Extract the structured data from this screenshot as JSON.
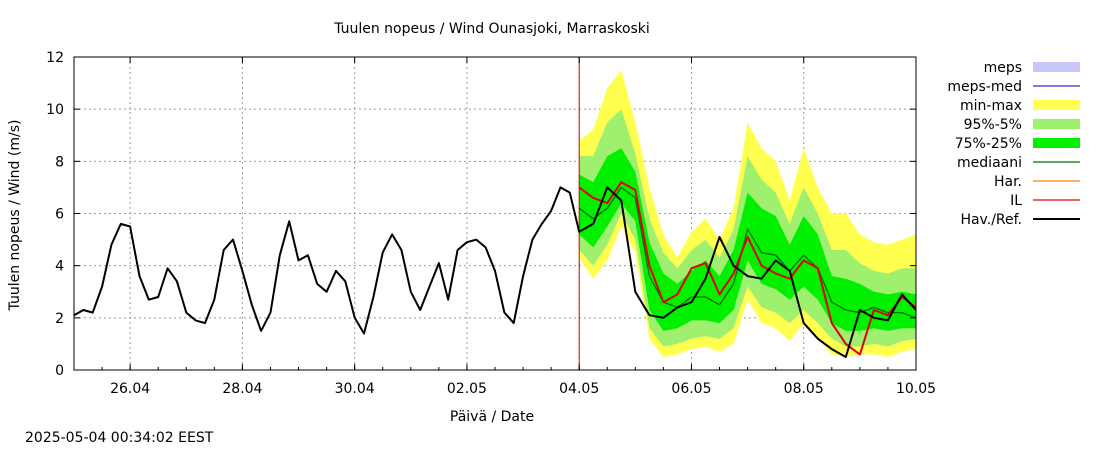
{
  "chart_data": {
    "type": "line",
    "title": "Tuulen nopeus / Wind  Ounasjoki, Marraskoski",
    "xlabel": "Päivä / Date",
    "ylabel": "Tuulen nopeus / Wind (m/s)",
    "ylim": [
      0,
      12
    ],
    "yticks": [
      0,
      2,
      4,
      6,
      8,
      10,
      12
    ],
    "xlim": [
      "2025-04-25 00:00",
      "2025-05-10 00:00"
    ],
    "xticks": [
      {
        "label": "26.04",
        "value": "2025-04-26"
      },
      {
        "label": "28.04",
        "value": "2025-04-28"
      },
      {
        "label": "30.04",
        "value": "2025-04-30"
      },
      {
        "label": "02.05",
        "value": "2025-05-02"
      },
      {
        "label": "04.05",
        "value": "2025-05-04"
      },
      {
        "label": "06.05",
        "value": "2025-05-06"
      },
      {
        "label": "08.05",
        "value": "2025-05-08"
      },
      {
        "label": "10.05",
        "value": "2025-05-10"
      }
    ],
    "grid": true,
    "legend_position": "right",
    "forecast_start": "2025-05-04 00:00",
    "colors": {
      "meps": "#c8c8f8",
      "meps_med": "#3030c0",
      "min_max": "#ffff50",
      "p95_5": "#a0f070",
      "p75_25": "#00f000",
      "mediaani": "#007000",
      "har": "#ff8000",
      "il": "#e00000",
      "hav": "#000000",
      "forecast_line": "#e00000",
      "grid": "#999999"
    },
    "legend": [
      {
        "key": "meps",
        "label": "meps",
        "style": "band"
      },
      {
        "key": "meps_med",
        "label": "meps-med",
        "style": "line"
      },
      {
        "key": "min_max",
        "label": "min-max",
        "style": "band"
      },
      {
        "key": "p95_5",
        "label": "95%-5%",
        "style": "band"
      },
      {
        "key": "p75_25",
        "label": "75%-25%",
        "style": "band"
      },
      {
        "key": "mediaani",
        "label": "mediaani",
        "style": "line"
      },
      {
        "key": "har",
        "label": "Har.",
        "style": "line"
      },
      {
        "key": "il",
        "label": "IL",
        "style": "line"
      },
      {
        "key": "hav",
        "label": "Hav./Ref.",
        "style": "thickline"
      }
    ],
    "series": [
      {
        "key": "hav",
        "x": [
          "2025-04-25 00:00",
          "2025-04-25 04:00",
          "2025-04-25 08:00",
          "2025-04-25 12:00",
          "2025-04-25 16:00",
          "2025-04-25 20:00",
          "2025-04-26 00:00",
          "2025-04-26 04:00",
          "2025-04-26 08:00",
          "2025-04-26 12:00",
          "2025-04-26 16:00",
          "2025-04-26 20:00",
          "2025-04-27 00:00",
          "2025-04-27 04:00",
          "2025-04-27 08:00",
          "2025-04-27 12:00",
          "2025-04-27 16:00",
          "2025-04-27 20:00",
          "2025-04-28 00:00",
          "2025-04-28 04:00",
          "2025-04-28 08:00",
          "2025-04-28 12:00",
          "2025-04-28 16:00",
          "2025-04-28 20:00",
          "2025-04-29 00:00",
          "2025-04-29 04:00",
          "2025-04-29 08:00",
          "2025-04-29 12:00",
          "2025-04-29 16:00",
          "2025-04-29 20:00",
          "2025-04-30 00:00",
          "2025-04-30 04:00",
          "2025-04-30 08:00",
          "2025-04-30 12:00",
          "2025-04-30 16:00",
          "2025-04-30 20:00",
          "2025-05-01 00:00",
          "2025-05-01 04:00",
          "2025-05-01 08:00",
          "2025-05-01 12:00",
          "2025-05-01 16:00",
          "2025-05-01 20:00",
          "2025-05-02 00:00",
          "2025-05-02 04:00",
          "2025-05-02 08:00",
          "2025-05-02 12:00",
          "2025-05-02 16:00",
          "2025-05-02 20:00",
          "2025-05-03 00:00",
          "2025-05-03 04:00",
          "2025-05-03 08:00",
          "2025-05-03 12:00",
          "2025-05-03 16:00",
          "2025-05-03 20:00",
          "2025-05-04 00:00",
          "2025-05-04 06:00",
          "2025-05-04 12:00",
          "2025-05-04 18:00",
          "2025-05-05 00:00",
          "2025-05-05 06:00",
          "2025-05-05 12:00",
          "2025-05-05 18:00",
          "2025-05-06 00:00",
          "2025-05-06 06:00",
          "2025-05-06 12:00",
          "2025-05-06 18:00",
          "2025-05-07 00:00",
          "2025-05-07 06:00",
          "2025-05-07 12:00",
          "2025-05-07 18:00",
          "2025-05-08 00:00",
          "2025-05-08 06:00",
          "2025-05-08 12:00",
          "2025-05-08 18:00",
          "2025-05-09 00:00",
          "2025-05-09 06:00",
          "2025-05-09 12:00",
          "2025-05-09 18:00",
          "2025-05-10 00:00"
        ],
        "y": [
          2.1,
          2.3,
          2.2,
          3.2,
          4.8,
          5.6,
          5.5,
          3.6,
          2.7,
          2.8,
          3.9,
          3.4,
          2.2,
          1.9,
          1.8,
          2.7,
          4.6,
          5.0,
          3.8,
          2.5,
          1.5,
          2.2,
          4.4,
          5.7,
          4.2,
          4.4,
          3.3,
          3.0,
          3.8,
          3.4,
          2.0,
          1.4,
          2.8,
          4.5,
          5.2,
          4.6,
          3.0,
          2.3,
          3.2,
          4.1,
          2.7,
          4.6,
          4.9,
          5.0,
          4.7,
          3.8,
          2.2,
          1.8,
          3.6,
          5.0,
          5.6,
          6.1,
          7.0,
          6.8,
          5.3,
          5.6,
          7.0,
          6.5,
          3.0,
          2.1,
          2.0,
          2.4,
          2.6,
          3.5,
          5.1,
          4.0,
          3.6,
          3.5,
          4.2,
          3.8,
          1.8,
          1.2,
          0.8,
          0.5,
          2.3,
          2.0,
          1.9,
          2.9,
          2.3
        ]
      },
      {
        "key": "il",
        "x": [
          "2025-05-04 00:00",
          "2025-05-04 06:00",
          "2025-05-04 12:00",
          "2025-05-04 18:00",
          "2025-05-05 00:00",
          "2025-05-05 06:00",
          "2025-05-05 12:00",
          "2025-05-05 18:00",
          "2025-05-06 00:00",
          "2025-05-06 06:00",
          "2025-05-06 12:00",
          "2025-05-06 18:00",
          "2025-05-07 00:00",
          "2025-05-07 06:00",
          "2025-05-07 12:00",
          "2025-05-07 18:00",
          "2025-05-08 00:00",
          "2025-05-08 06:00",
          "2025-05-08 12:00",
          "2025-05-08 18:00",
          "2025-05-09 00:00",
          "2025-05-09 06:00",
          "2025-05-09 12:00",
          "2025-05-09 18:00",
          "2025-05-10 00:00"
        ],
        "y": [
          7.0,
          6.6,
          6.4,
          7.2,
          6.9,
          4.0,
          2.6,
          2.9,
          3.9,
          4.1,
          2.9,
          3.7,
          5.1,
          4.0,
          3.7,
          3.5,
          4.2,
          3.9,
          1.8,
          1.0,
          0.6,
          2.3,
          2.1,
          2.8,
          2.4
        ]
      },
      {
        "key": "mediaani",
        "x": [
          "2025-05-04 00:00",
          "2025-05-04 06:00",
          "2025-05-04 12:00",
          "2025-05-04 18:00",
          "2025-05-05 00:00",
          "2025-05-05 06:00",
          "2025-05-05 12:00",
          "2025-05-05 18:00",
          "2025-05-06 00:00",
          "2025-05-06 06:00",
          "2025-05-06 12:00",
          "2025-05-06 18:00",
          "2025-05-07 00:00",
          "2025-05-07 06:00",
          "2025-05-07 12:00",
          "2025-05-07 18:00",
          "2025-05-08 00:00",
          "2025-05-08 06:00",
          "2025-05-08 12:00",
          "2025-05-08 18:00",
          "2025-05-09 00:00",
          "2025-05-09 06:00",
          "2025-05-09 12:00",
          "2025-05-09 18:00",
          "2025-05-10 00:00"
        ],
        "y": [
          6.2,
          5.8,
          6.2,
          7.0,
          6.6,
          3.6,
          2.6,
          2.4,
          2.8,
          2.8,
          2.5,
          3.3,
          5.4,
          4.5,
          4.4,
          3.8,
          4.4,
          3.9,
          2.6,
          2.3,
          2.2,
          2.4,
          2.2,
          2.2,
          2.0
        ]
      }
    ],
    "bands": [
      {
        "key": "min_max",
        "x": [
          "2025-05-04 00:00",
          "2025-05-04 06:00",
          "2025-05-04 12:00",
          "2025-05-04 18:00",
          "2025-05-05 00:00",
          "2025-05-05 06:00",
          "2025-05-05 12:00",
          "2025-05-05 18:00",
          "2025-05-06 00:00",
          "2025-05-06 06:00",
          "2025-05-06 12:00",
          "2025-05-06 18:00",
          "2025-05-07 00:00",
          "2025-05-07 06:00",
          "2025-05-07 12:00",
          "2025-05-07 18:00",
          "2025-05-08 00:00",
          "2025-05-08 06:00",
          "2025-05-08 12:00",
          "2025-05-08 18:00",
          "2025-05-09 00:00",
          "2025-05-09 06:00",
          "2025-05-09 12:00",
          "2025-05-09 18:00",
          "2025-05-10 00:00"
        ],
        "low": [
          4.3,
          3.5,
          4.2,
          5.5,
          4.5,
          1.2,
          0.5,
          0.6,
          0.8,
          0.9,
          0.7,
          1.0,
          2.7,
          1.8,
          1.6,
          1.1,
          1.8,
          1.2,
          0.6,
          0.5,
          0.6,
          0.6,
          0.5,
          0.7,
          0.8
        ],
        "high": [
          8.8,
          9.2,
          10.8,
          11.5,
          9.5,
          7.0,
          5.2,
          4.3,
          5.3,
          5.8,
          5.0,
          6.2,
          9.5,
          8.5,
          8.0,
          6.5,
          8.5,
          7.0,
          6.0,
          6.0,
          5.2,
          4.9,
          4.8,
          5.0,
          5.2
        ]
      },
      {
        "key": "p95_5",
        "x": [
          "2025-05-04 00:00",
          "2025-05-04 06:00",
          "2025-05-04 12:00",
          "2025-05-04 18:00",
          "2025-05-05 00:00",
          "2025-05-05 06:00",
          "2025-05-05 12:00",
          "2025-05-05 18:00",
          "2025-05-06 00:00",
          "2025-05-06 06:00",
          "2025-05-06 12:00",
          "2025-05-06 18:00",
          "2025-05-07 00:00",
          "2025-05-07 06:00",
          "2025-05-07 12:00",
          "2025-05-07 18:00",
          "2025-05-08 00:00",
          "2025-05-08 06:00",
          "2025-05-08 12:00",
          "2025-05-08 18:00",
          "2025-05-09 00:00",
          "2025-05-09 06:00",
          "2025-05-09 12:00",
          "2025-05-09 18:00",
          "2025-05-10 00:00"
        ],
        "low": [
          4.6,
          4.0,
          4.8,
          6.0,
          5.0,
          1.6,
          0.9,
          1.0,
          1.2,
          1.3,
          1.2,
          1.6,
          3.2,
          2.4,
          2.2,
          1.8,
          2.3,
          1.8,
          1.2,
          0.9,
          0.9,
          1.0,
          0.9,
          1.1,
          1.2
        ],
        "high": [
          8.2,
          8.2,
          9.5,
          10.0,
          8.3,
          5.8,
          4.5,
          3.9,
          4.6,
          5.0,
          4.3,
          5.4,
          8.2,
          7.3,
          6.8,
          5.6,
          7.0,
          6.0,
          4.6,
          4.6,
          4.1,
          3.8,
          3.7,
          3.9,
          3.9
        ]
      },
      {
        "key": "p75_25",
        "x": [
          "2025-05-04 00:00",
          "2025-05-04 06:00",
          "2025-05-04 12:00",
          "2025-05-04 18:00",
          "2025-05-05 00:00",
          "2025-05-05 06:00",
          "2025-05-05 12:00",
          "2025-05-05 18:00",
          "2025-05-06 00:00",
          "2025-05-06 06:00",
          "2025-05-06 12:00",
          "2025-05-06 18:00",
          "2025-05-07 00:00",
          "2025-05-07 06:00",
          "2025-05-07 12:00",
          "2025-05-07 18:00",
          "2025-05-08 00:00",
          "2025-05-08 06:00",
          "2025-05-08 12:00",
          "2025-05-08 18:00",
          "2025-05-09 00:00",
          "2025-05-09 06:00",
          "2025-05-09 12:00",
          "2025-05-09 18:00",
          "2025-05-10 00:00"
        ],
        "low": [
          5.2,
          4.7,
          5.5,
          6.4,
          5.7,
          2.3,
          1.5,
          1.6,
          1.9,
          1.9,
          1.8,
          2.3,
          4.2,
          3.3,
          3.1,
          2.7,
          3.2,
          2.7,
          1.8,
          1.5,
          1.5,
          1.6,
          1.5,
          1.6,
          1.6
        ],
        "high": [
          7.5,
          7.2,
          8.2,
          8.5,
          7.6,
          4.9,
          3.7,
          3.3,
          3.8,
          4.2,
          3.6,
          4.6,
          6.8,
          6.2,
          5.9,
          4.8,
          5.9,
          5.2,
          3.6,
          3.5,
          3.3,
          3.0,
          2.9,
          3.0,
          2.9
        ]
      }
    ]
  },
  "timestamp": "2025-05-04  00:34:02 EEST"
}
